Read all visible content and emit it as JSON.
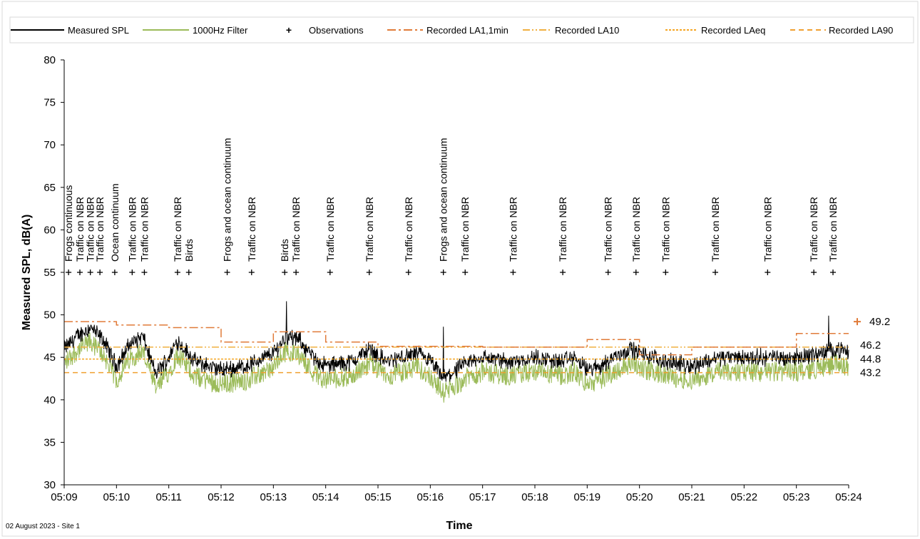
{
  "chart_data": {
    "type": "line",
    "title": "",
    "xlabel": "Time",
    "ylabel": "Measured SPL, dB(A)",
    "footer_note": "02 August 2023 - Site 1",
    "ylim": [
      30,
      80
    ],
    "y_ticks": [
      "30",
      "35",
      "40",
      "45",
      "50",
      "55",
      "60",
      "65",
      "70",
      "75",
      "80"
    ],
    "xlim": [
      "05:09",
      "05:24"
    ],
    "x_ticks": [
      "05:09",
      "05:10",
      "05:11",
      "05:12",
      "05:13",
      "05:14",
      "05:15",
      "05:16",
      "05:17",
      "05:18",
      "05:19",
      "05:20",
      "05:21",
      "05:22",
      "05:23",
      "05:24"
    ],
    "grid": false,
    "legend_position": "top",
    "legend": [
      {
        "label": "Measured SPL",
        "color": "#000000",
        "style": "solid"
      },
      {
        "label": "1000Hz Filter",
        "color": "#9bbb59",
        "style": "solid"
      },
      {
        "label": "Observations",
        "color": "#000000",
        "style": "marker-plus"
      },
      {
        "label": "Recorded LA1,1min",
        "color": "#e07b39",
        "style": "dashdot"
      },
      {
        "label": "Recorded LA10",
        "color": "#f0b040",
        "style": "dashdotdot"
      },
      {
        "label": "Recorded LAeq",
        "color": "#f5a623",
        "style": "dotted"
      },
      {
        "label": "Recorded LA90",
        "color": "#f0a030",
        "style": "dashed"
      }
    ],
    "measured_spl_profile": {
      "time": [
        "05:09:00",
        "05:09:15",
        "05:09:30",
        "05:09:45",
        "05:10:00",
        "05:10:15",
        "05:10:30",
        "05:10:45",
        "05:11:00",
        "05:11:10",
        "05:11:30",
        "05:12:00",
        "05:12:30",
        "05:13:00",
        "05:13:15",
        "05:13:30",
        "05:13:45",
        "05:14:00",
        "05:14:30",
        "05:14:50",
        "05:15:10",
        "05:15:30",
        "05:15:45",
        "05:16:00",
        "05:16:15",
        "05:16:30",
        "05:16:45",
        "05:17:00",
        "05:17:30",
        "05:18:00",
        "05:18:30",
        "05:18:45",
        "05:19:00",
        "05:19:15",
        "05:19:30",
        "05:19:50",
        "05:20:00",
        "05:20:30",
        "05:21:00",
        "05:21:30",
        "05:22:00",
        "05:22:30",
        "05:23:00",
        "05:23:30",
        "05:23:45",
        "05:24:00"
      ],
      "value": [
        46.0,
        47.5,
        48.5,
        47.0,
        44.0,
        46.5,
        47.5,
        43.0,
        45.0,
        47.0,
        44.5,
        43.5,
        44.0,
        45.5,
        47.5,
        47.0,
        45.0,
        44.0,
        44.5,
        46.0,
        44.5,
        45.0,
        45.5,
        44.5,
        42.5,
        43.5,
        44.5,
        45.0,
        44.5,
        45.0,
        44.5,
        45.0,
        43.5,
        44.0,
        45.0,
        46.0,
        45.5,
        44.5,
        44.0,
        45.0,
        45.0,
        45.0,
        45.0,
        45.5,
        46.0,
        45.5
      ]
    },
    "measured_spl_spikes": [
      {
        "time": "05:13:15",
        "value": 51.6
      },
      {
        "time": "05:16:15",
        "value": 48.6
      },
      {
        "time": "05:23:37",
        "value": 49.9
      }
    ],
    "filter_1000hz_offset": -1.7,
    "recorded_LA1_1min": {
      "time": [
        "05:09",
        "05:10",
        "05:11",
        "05:12",
        "05:13",
        "05:14",
        "05:15",
        "05:16",
        "05:17",
        "05:18",
        "05:19",
        "05:20",
        "05:21",
        "05:22",
        "05:23",
        "05:24"
      ],
      "value": [
        49.2,
        48.8,
        48.5,
        46.8,
        48.0,
        46.8,
        46.3,
        46.3,
        46.2,
        46.2,
        47.1,
        45.3,
        46.2,
        46.2,
        47.8,
        47.8
      ]
    },
    "recorded_LA10": 46.2,
    "recorded_LAeq": 44.8,
    "recorded_LA90": 43.2,
    "end_labels": [
      "49.2",
      "46.2",
      "44.8",
      "43.2"
    ],
    "end_marker_value": 49.2,
    "observation_marker_level": 55,
    "observations": [
      {
        "time": "05:09:05",
        "label": "Frogs continuous"
      },
      {
        "time": "05:09:18",
        "label": "Traffic on NBR"
      },
      {
        "time": "05:09:30",
        "label": "Traffic on NBR"
      },
      {
        "time": "05:09:41",
        "label": "Traffic on NBR"
      },
      {
        "time": "05:09:58",
        "label": "Ocean continuum"
      },
      {
        "time": "05:10:18",
        "label": "Traffic on NBR"
      },
      {
        "time": "05:10:32",
        "label": "Traffic on NBR"
      },
      {
        "time": "05:11:10",
        "label": "Traffic on NBR"
      },
      {
        "time": "05:11:23",
        "label": "Birds"
      },
      {
        "time": "05:12:07",
        "label": "Frogs and ocean continuum"
      },
      {
        "time": "05:12:35",
        "label": "Traffic on NBR"
      },
      {
        "time": "05:13:13",
        "label": "Birds"
      },
      {
        "time": "05:13:26",
        "label": "Traffic on NBR"
      },
      {
        "time": "05:14:05",
        "label": "Traffic on NBR"
      },
      {
        "time": "05:14:50",
        "label": "Traffic on NBR"
      },
      {
        "time": "05:15:35",
        "label": "Traffic on NBR"
      },
      {
        "time": "05:16:15",
        "label": "Frogs and ocean continuum"
      },
      {
        "time": "05:16:40",
        "label": "Traffic on NBR"
      },
      {
        "time": "05:17:35",
        "label": "Traffic on NBR"
      },
      {
        "time": "05:18:32",
        "label": "Traffic on NBR"
      },
      {
        "time": "05:19:24",
        "label": "Traffic on NBR"
      },
      {
        "time": "05:19:56",
        "label": "Traffic on NBR"
      },
      {
        "time": "05:20:30",
        "label": "Traffic on NBR"
      },
      {
        "time": "05:21:27",
        "label": "Traffic on NBR"
      },
      {
        "time": "05:22:27",
        "label": "Traffic on NBR"
      },
      {
        "time": "05:23:20",
        "label": "Traffic on NBR"
      },
      {
        "time": "05:23:42",
        "label": "Traffic on NBR"
      }
    ],
    "colors": {
      "measured": "#000000",
      "filter": "#9bbb59",
      "la1": "#e07b39",
      "la10": "#f0b040",
      "laeq": "#f5a623",
      "la90": "#f0a030",
      "end_marker": "#e07b39",
      "axis": "#000000"
    }
  }
}
